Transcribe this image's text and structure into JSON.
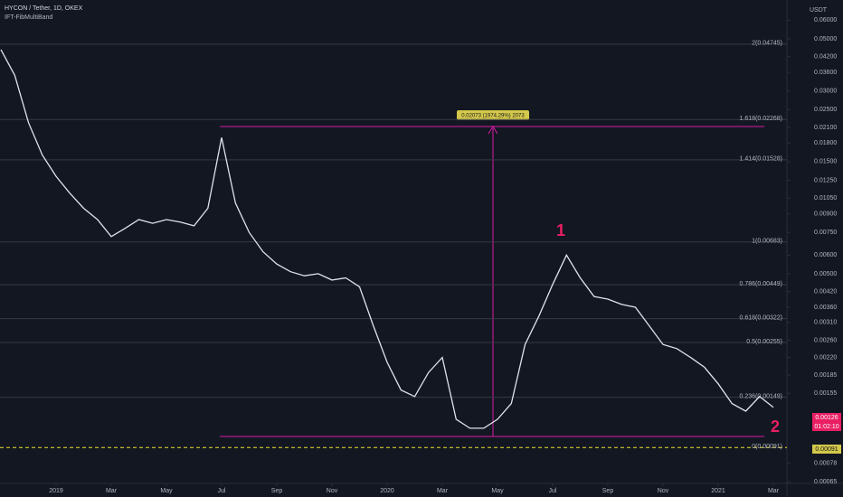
{
  "chart_data": {
    "type": "line",
    "title": "HYCON / Tether, 1D, OKEX",
    "subtitle": "IFT-FibMultiBand",
    "y_axis_label": "USDT",
    "log_scale": true,
    "color": "#e0e3eb",
    "categories": [
      null,
      null,
      null,
      null,
      "2019",
      null,
      null,
      null,
      "Mar",
      null,
      null,
      null,
      "May",
      null,
      null,
      null,
      "Jul",
      null,
      null,
      null,
      "Sep",
      null,
      null,
      null,
      "Nov",
      null,
      null,
      null,
      "2020",
      null,
      null,
      null,
      "Mar",
      null,
      null,
      null,
      "May",
      null,
      null,
      null,
      "Jul",
      null,
      null,
      null,
      "Sep",
      null,
      null,
      null,
      "Nov",
      null,
      null,
      null,
      "2021",
      null,
      null,
      null,
      "Mar"
    ],
    "values": [
      0.045,
      0.035,
      0.022,
      0.016,
      0.013,
      0.011,
      0.0095,
      0.0085,
      0.0072,
      0.0078,
      0.0085,
      0.0082,
      0.0085,
      0.0083,
      0.008,
      0.0095,
      0.019,
      0.01,
      0.0075,
      0.0062,
      0.0055,
      0.0051,
      0.0049,
      0.005,
      0.0047,
      0.0048,
      0.0044,
      0.003,
      0.0021,
      0.0016,
      0.0015,
      0.0019,
      0.0022,
      0.0012,
      0.0011,
      0.0011,
      0.0012,
      0.0014,
      0.0025,
      0.0033,
      0.0045,
      0.006,
      0.0048,
      0.004,
      0.0039,
      0.0037,
      0.0036,
      0.003,
      0.0025,
      0.0024,
      0.0022,
      0.002,
      0.0017,
      0.0014,
      0.0013,
      0.0015,
      0.00135
    ],
    "ylim": [
      0.00064,
      0.07
    ],
    "yticks": [
      {
        "value": 0.06,
        "label": "0.06000"
      },
      {
        "value": 0.05,
        "label": "0.05000"
      },
      {
        "value": 0.042,
        "label": "0.04200"
      },
      {
        "value": 0.036,
        "label": "0.03600"
      },
      {
        "value": 0.03,
        "label": "0.03000"
      },
      {
        "value": 0.025,
        "label": "0.02500"
      },
      {
        "value": 0.021,
        "label": "0.02100"
      },
      {
        "value": 0.018,
        "label": "0.01800"
      },
      {
        "value": 0.015,
        "label": "0.01500"
      },
      {
        "value": 0.0125,
        "label": "0.01250"
      },
      {
        "value": 0.0105,
        "label": "0.01050"
      },
      {
        "value": 0.009,
        "label": "0.00900"
      },
      {
        "value": 0.0075,
        "label": "0.00750"
      },
      {
        "value": 0.006,
        "label": "0.00600"
      },
      {
        "value": 0.005,
        "label": "0.00500"
      },
      {
        "value": 0.0042,
        "label": "0.00420"
      },
      {
        "value": 0.0036,
        "label": "0.00360"
      },
      {
        "value": 0.0031,
        "label": "0.00310"
      },
      {
        "value": 0.0026,
        "label": "0.00260"
      },
      {
        "value": 0.0022,
        "label": "0.00220"
      },
      {
        "value": 0.00185,
        "label": "0.00185"
      },
      {
        "value": 0.00155,
        "label": "0.00155"
      },
      {
        "value": 0.00078,
        "label": "0.00078"
      },
      {
        "value": 0.00065,
        "label": "0.00065"
      }
    ],
    "fib_levels": [
      {
        "value": 0.04745,
        "label": "2(0.04745)"
      },
      {
        "value": 0.02268,
        "label": "1.618(0.02268)"
      },
      {
        "value": 0.01528,
        "label": "1.414(0.01528)"
      },
      {
        "value": 0.00683,
        "label": "1(0.00683)"
      },
      {
        "value": 0.00449,
        "label": "0.786(0.00449)"
      },
      {
        "value": 0.00322,
        "label": "0.618(0.00322)"
      },
      {
        "value": 0.00255,
        "label": "0.5(0.00255)"
      },
      {
        "value": 0.00149,
        "label": "0.236(0.00149)"
      },
      {
        "value": 0.00091,
        "label": "0(0.00091)"
      }
    ],
    "annotations": {
      "measure": "0.02073 (1974.29%) 2073",
      "wave_1": "1",
      "wave_2": "2"
    },
    "price_label": "0.00126",
    "countdown": "01:02:10",
    "fib_zero_label": "0.00091"
  }
}
